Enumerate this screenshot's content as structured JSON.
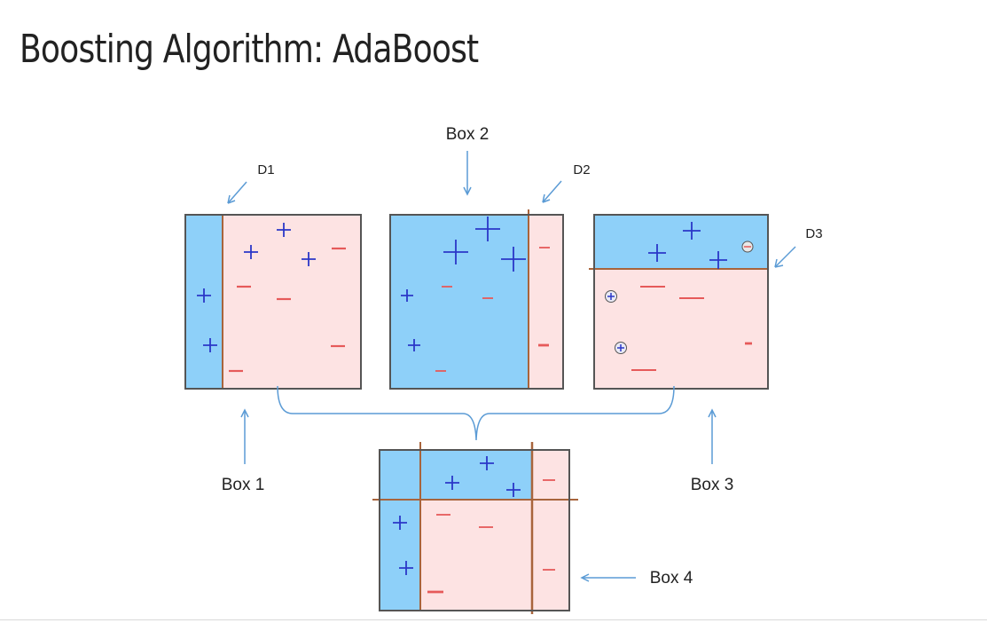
{
  "title": "Boosting Algorithm: AdaBoost",
  "labels": {
    "box1": "Box 1",
    "box2": "Box 2",
    "box3": "Box 3",
    "box4": "Box 4",
    "d1": "D1",
    "d2": "D2",
    "d3": "D3"
  },
  "colors": {
    "positive_region": "#8ed0f9",
    "negative_region": "#fde3e3",
    "plus_sign": "#2b37c8",
    "minus_sign": "#e65a5a",
    "arrow": "#5b9bd5",
    "split_line": "#a8643c",
    "frame": "#555555"
  },
  "symbols": {
    "plus": "+",
    "minus": "−"
  }
}
